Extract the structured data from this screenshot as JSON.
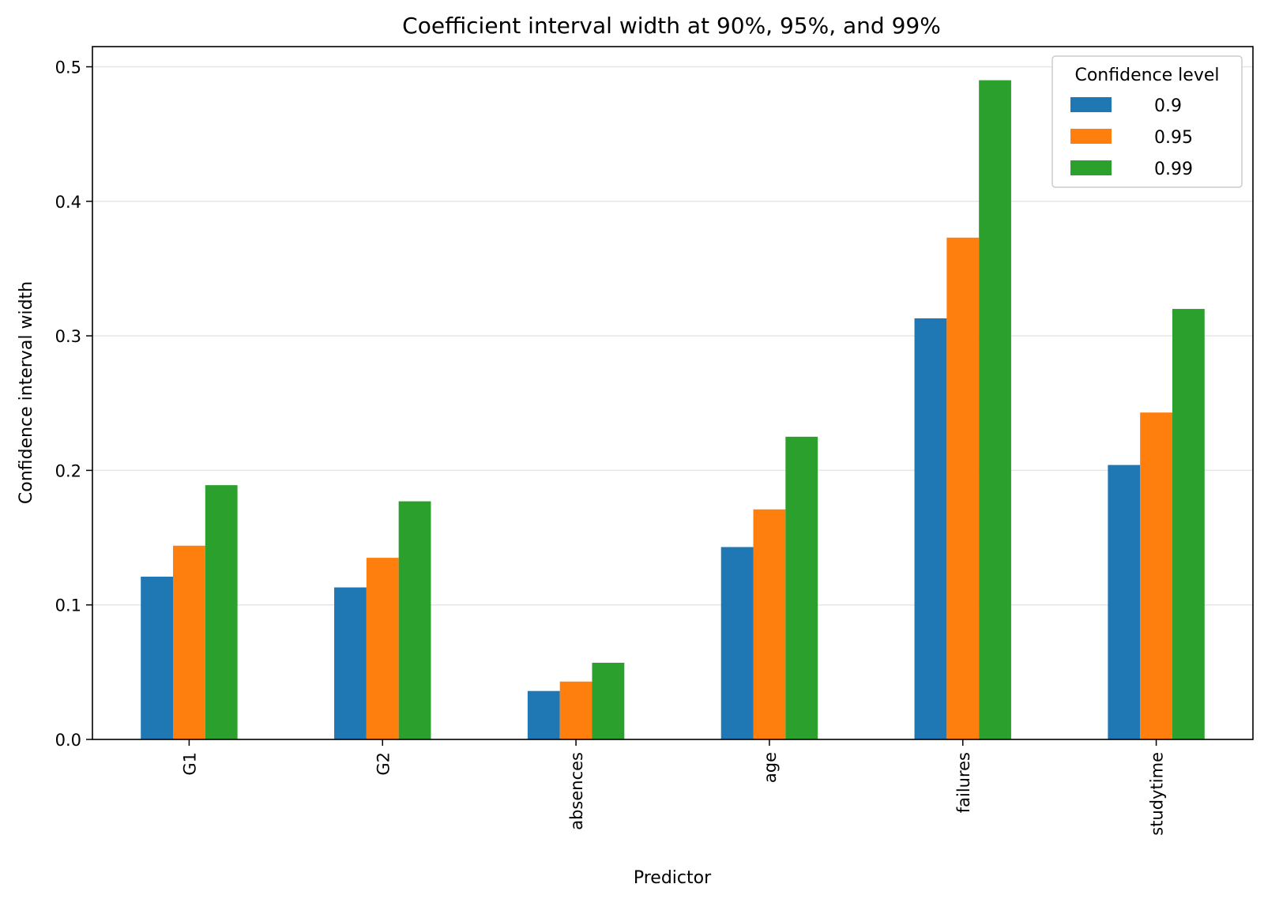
{
  "chart_data": {
    "type": "bar",
    "title": "Coefficient interval width at 90%, 95%, and 99%",
    "xlabel": "Predictor",
    "ylabel": "Confidence interval width",
    "categories": [
      "G1",
      "G2",
      "absences",
      "age",
      "failures",
      "studytime"
    ],
    "series": [
      {
        "name": "0.9",
        "color": "#1f77b4",
        "values": [
          0.121,
          0.113,
          0.036,
          0.143,
          0.313,
          0.204
        ]
      },
      {
        "name": "0.95",
        "color": "#ff7f0e",
        "values": [
          0.144,
          0.135,
          0.043,
          0.171,
          0.373,
          0.243
        ]
      },
      {
        "name": "0.99",
        "color": "#2ca02c",
        "values": [
          0.189,
          0.177,
          0.057,
          0.225,
          0.49,
          0.32
        ]
      }
    ],
    "ylim": [
      0,
      0.515
    ],
    "yticks": [
      0.0,
      0.1,
      0.2,
      0.3,
      0.4,
      0.5
    ],
    "ytick_labels": [
      "0.0",
      "0.1",
      "0.2",
      "0.3",
      "0.4",
      "0.5"
    ],
    "grid": "y",
    "legend": {
      "title": "Confidence level",
      "placement": "top-right"
    }
  }
}
